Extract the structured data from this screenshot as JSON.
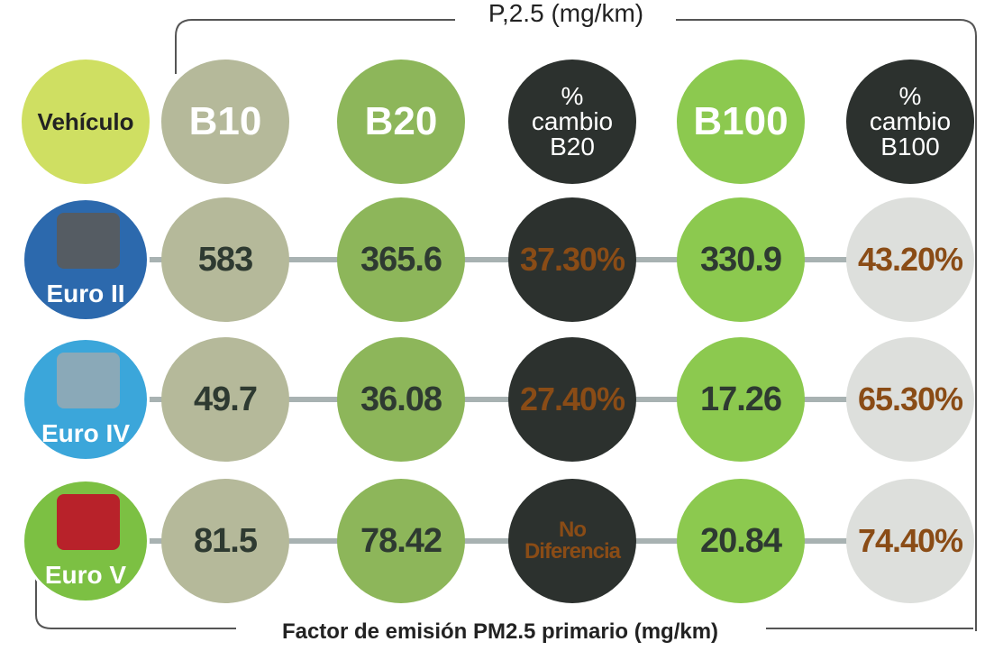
{
  "header": {
    "top_label": "P,2.5 (mg/km)",
    "bottom_label": "Factor de emisión PM2.5 primario (mg/km)"
  },
  "columns": [
    "Vehículo",
    "B10",
    "B20",
    "% cambio B20",
    "B100",
    "% cambio B100"
  ],
  "rows": [
    {
      "vehicle": "Euro II",
      "values": [
        "583",
        "365.6",
        "37.30%",
        "330.9",
        "43.20%"
      ]
    },
    {
      "vehicle": "Euro IV",
      "values": [
        "49.7",
        "36.08",
        "27.40%",
        "17.26",
        "65.30%"
      ]
    },
    {
      "vehicle": "Euro V",
      "values": [
        "81.5",
        "78.42",
        "No Diferencia",
        "20.84",
        "74.40%"
      ]
    }
  ]
}
